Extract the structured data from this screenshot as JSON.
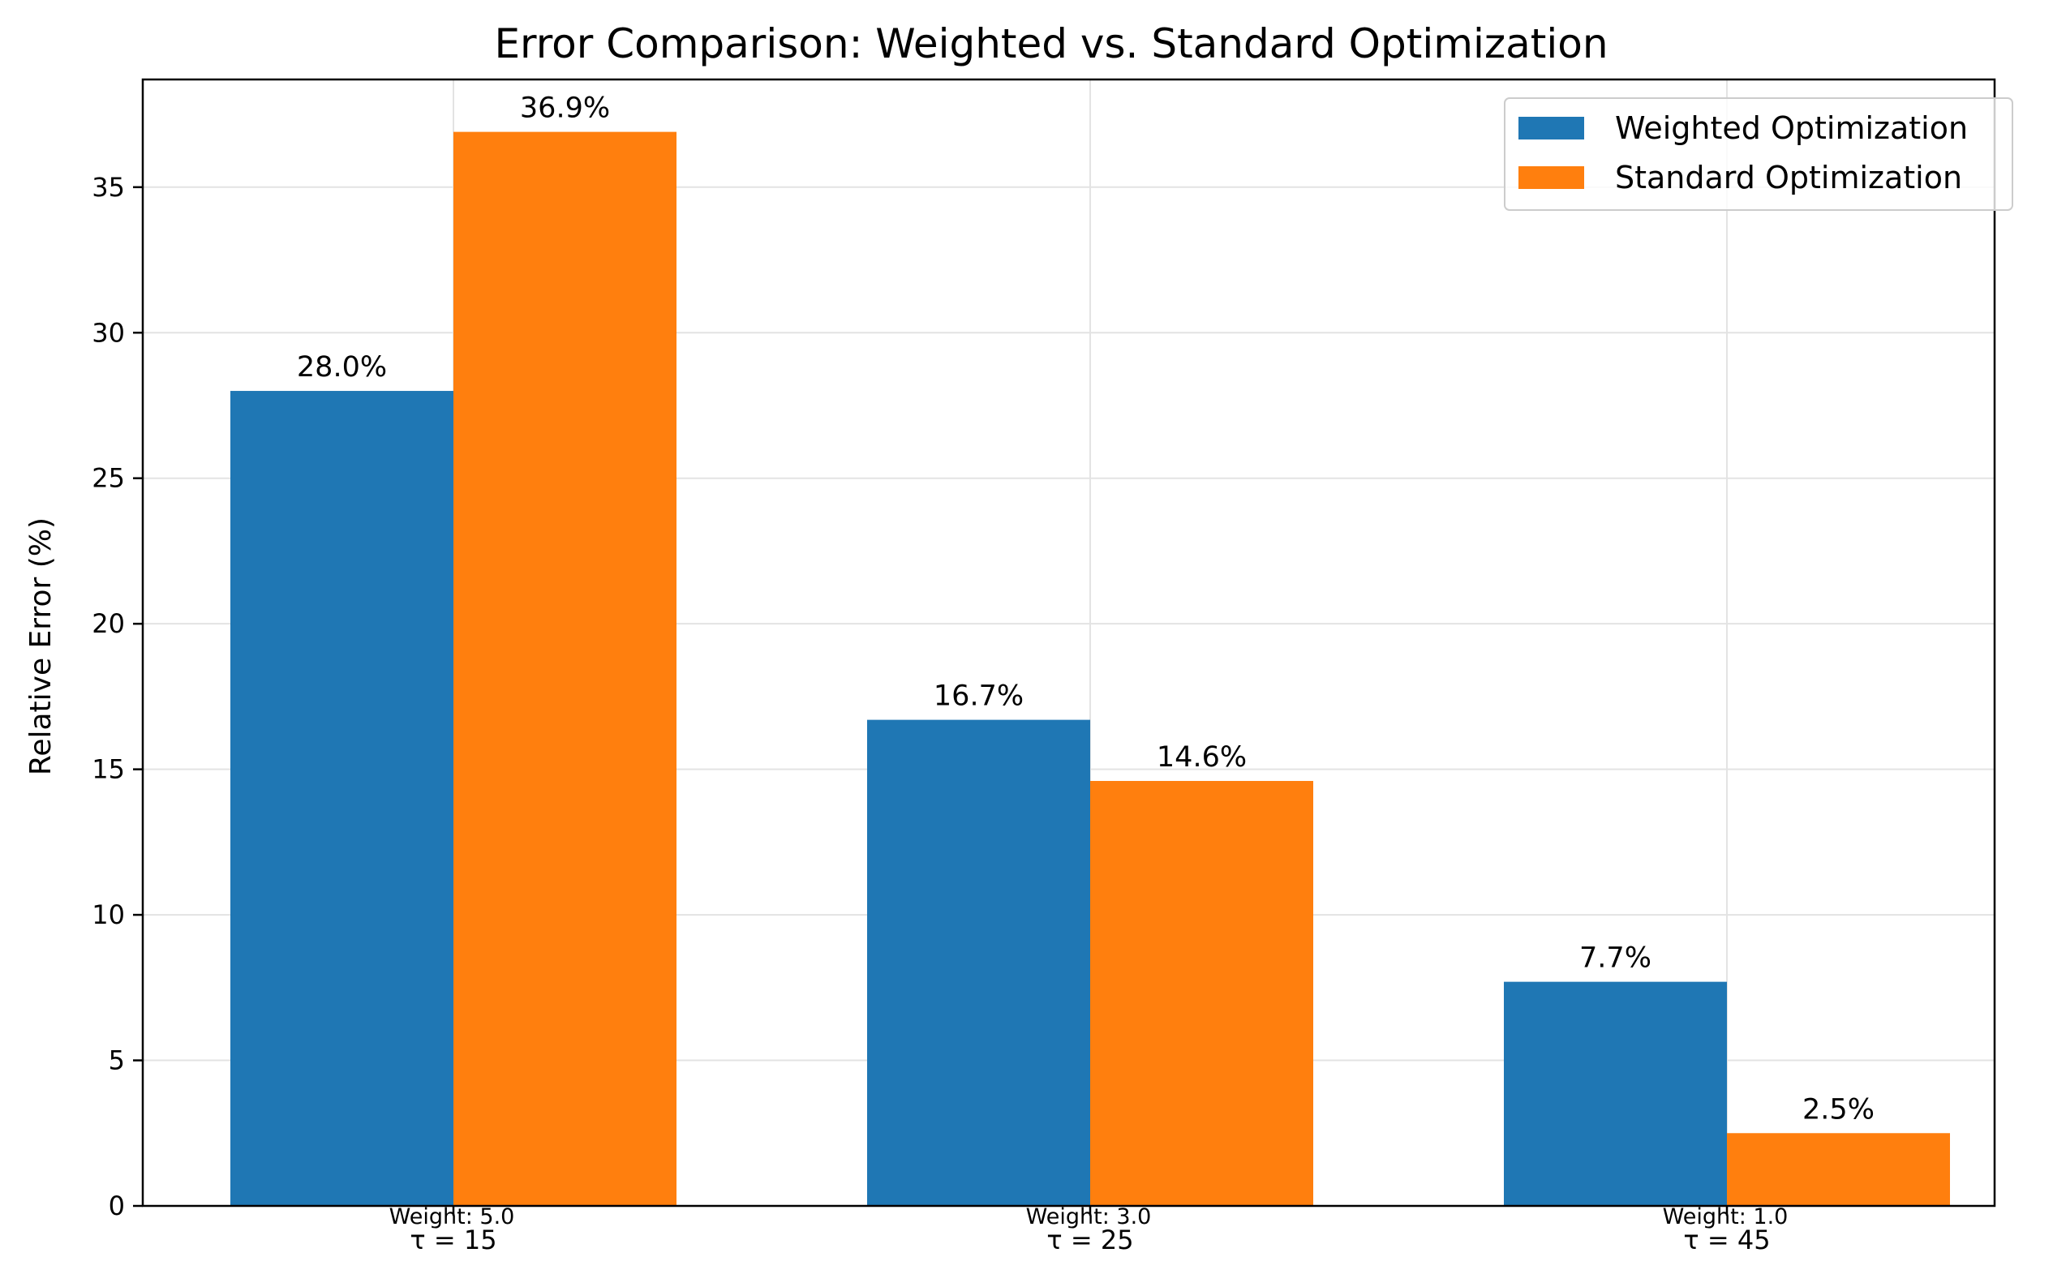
{
  "chart_data": {
    "type": "bar",
    "title": "Error Comparison: Weighted vs. Standard Optimization",
    "xlabel": "",
    "ylabel": "Relative Error (%)",
    "categories": [
      "τ = 15",
      "τ = 25",
      "τ = 45"
    ],
    "weight_labels": [
      "Weight: 5.0",
      "Weight: 3.0",
      "Weight: 1.0"
    ],
    "series": [
      {
        "name": "Weighted Optimization",
        "color": "#1f77b4",
        "values": [
          28.0,
          16.7,
          7.7
        ],
        "labels": [
          "28.0%",
          "16.7%",
          "7.7%"
        ]
      },
      {
        "name": "Standard Optimization",
        "color": "#ff7f0e",
        "values": [
          36.9,
          14.6,
          2.5
        ],
        "labels": [
          "36.9%",
          "14.6%",
          "2.5%"
        ]
      }
    ],
    "ylim": [
      0,
      38.7
    ],
    "yticks": [
      0,
      5,
      10,
      15,
      20,
      25,
      30,
      35
    ],
    "grid": true,
    "legend_position": "top-right"
  }
}
